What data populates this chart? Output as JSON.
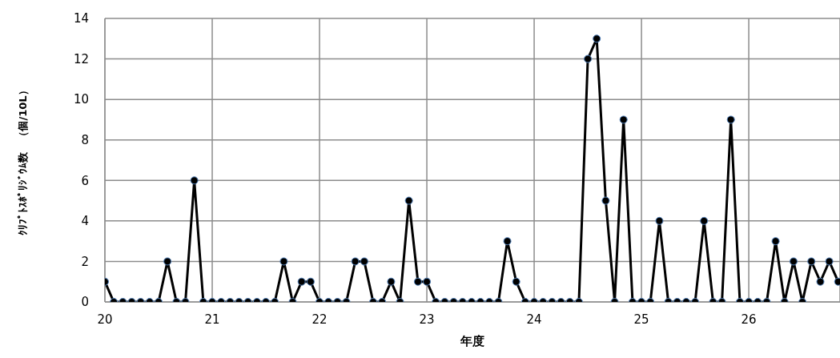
{
  "chart_data": {
    "type": "line",
    "xlabel": "年度",
    "ylabel": "ｸﾘﾌﾟﾄｽﾎﾟﾘｼﾞｳﾑ数　（個/10L）",
    "x": [
      20,
      20.083,
      20.167,
      20.25,
      20.333,
      20.417,
      20.5,
      20.583,
      20.667,
      20.75,
      20.833,
      20.917,
      21,
      21.083,
      21.167,
      21.25,
      21.333,
      21.417,
      21.5,
      21.583,
      21.667,
      21.75,
      21.833,
      21.917,
      22,
      22.083,
      22.167,
      22.25,
      22.333,
      22.417,
      22.5,
      22.583,
      22.667,
      22.75,
      22.833,
      22.917,
      23,
      23.083,
      23.167,
      23.25,
      23.333,
      23.417,
      23.5,
      23.583,
      23.667,
      23.75,
      23.833,
      23.917,
      24,
      24.083,
      24.167,
      24.25,
      24.333,
      24.417,
      24.5,
      24.583,
      24.667,
      24.75,
      24.833,
      24.917,
      25,
      25.083,
      25.167,
      25.25,
      25.333,
      25.417,
      25.5,
      25.583,
      25.667,
      25.75,
      25.833,
      25.917,
      26,
      26.083,
      26.167,
      26.25,
      26.333,
      26.417,
      26.5,
      26.583,
      26.667,
      26.75,
      26.833
    ],
    "series": [
      {
        "color": "#000000",
        "values": [
          1,
          0,
          0,
          0,
          0,
          0,
          0,
          2,
          0,
          0,
          6,
          0,
          0,
          0,
          0,
          0,
          0,
          0,
          0,
          0,
          2,
          0,
          1,
          1,
          0,
          0,
          0,
          0,
          2,
          2,
          0,
          0,
          1,
          0,
          5,
          1,
          1,
          0,
          0,
          0,
          0,
          0,
          0,
          0,
          0,
          3,
          1,
          0,
          0,
          0,
          0,
          0,
          0,
          0,
          12,
          13,
          5,
          0,
          9,
          0,
          0,
          0,
          4,
          0,
          0,
          0,
          0,
          4,
          0,
          0,
          9,
          0,
          0,
          0,
          0,
          3,
          0,
          2,
          0,
          2,
          1,
          2,
          1
        ]
      }
    ],
    "xlim": [
      20,
      26.85
    ],
    "xticks": [
      20,
      21,
      22,
      23,
      24,
      25,
      26
    ],
    "ylim": [
      0,
      14
    ],
    "yticks": [
      0,
      2,
      4,
      6,
      8,
      10,
      12,
      14
    ],
    "grid": true,
    "legend": false,
    "marker": "circle",
    "line_style": "solid"
  }
}
